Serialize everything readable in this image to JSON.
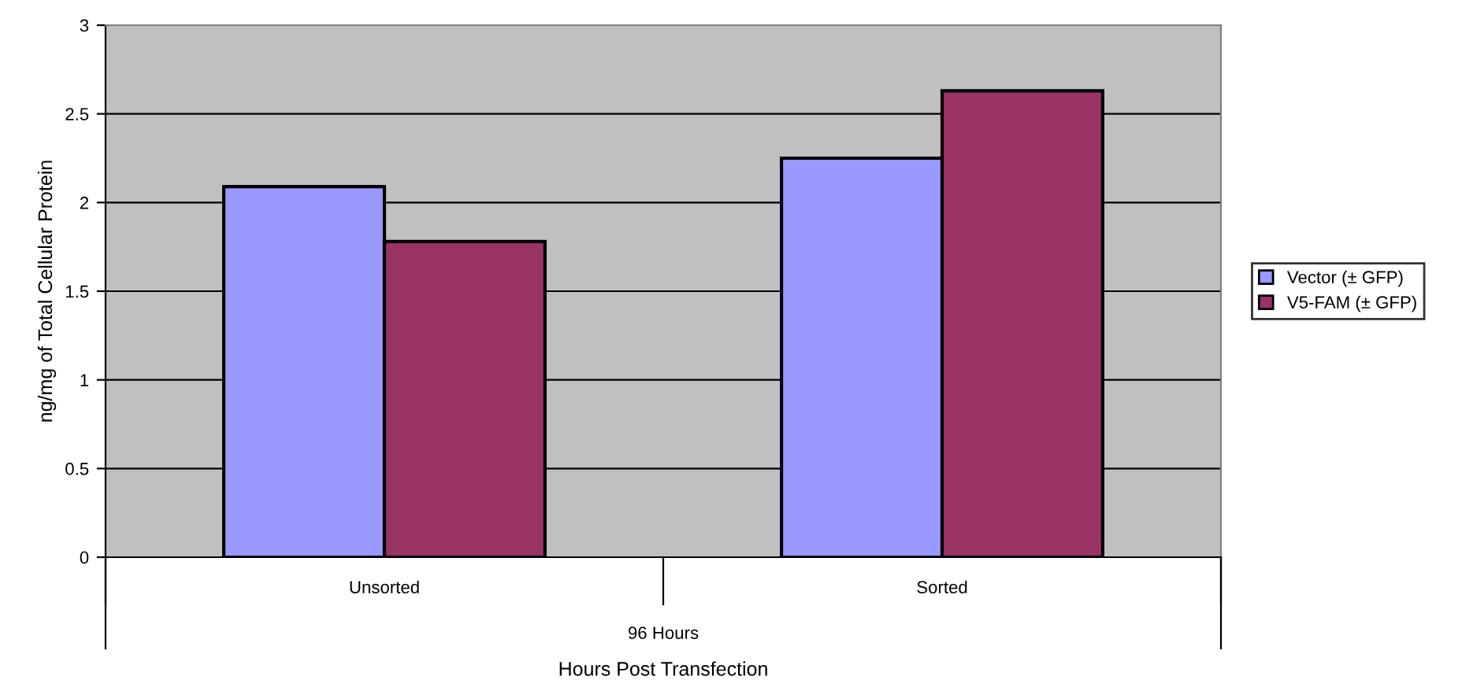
{
  "chart_data": {
    "type": "bar",
    "xlabel": "Hours Post Transfection",
    "ylabel": "ng/mg of Total Cellular Protein",
    "categories": [
      "Unsorted",
      "Sorted"
    ],
    "series": [
      {
        "name": "Vector (± GFP)",
        "color": "#9999ff",
        "values": [
          2.09,
          2.25
        ]
      },
      {
        "name": "V5-FAM (± GFP)",
        "color": "#993366",
        "values": [
          1.78,
          2.63
        ]
      }
    ],
    "annotations": [
      "96 Hours"
    ],
    "ylim": [
      0,
      3
    ],
    "yticks": [
      0,
      0.5,
      1,
      1.5,
      2,
      2.5,
      3
    ],
    "grid": "y",
    "legend": "right"
  }
}
